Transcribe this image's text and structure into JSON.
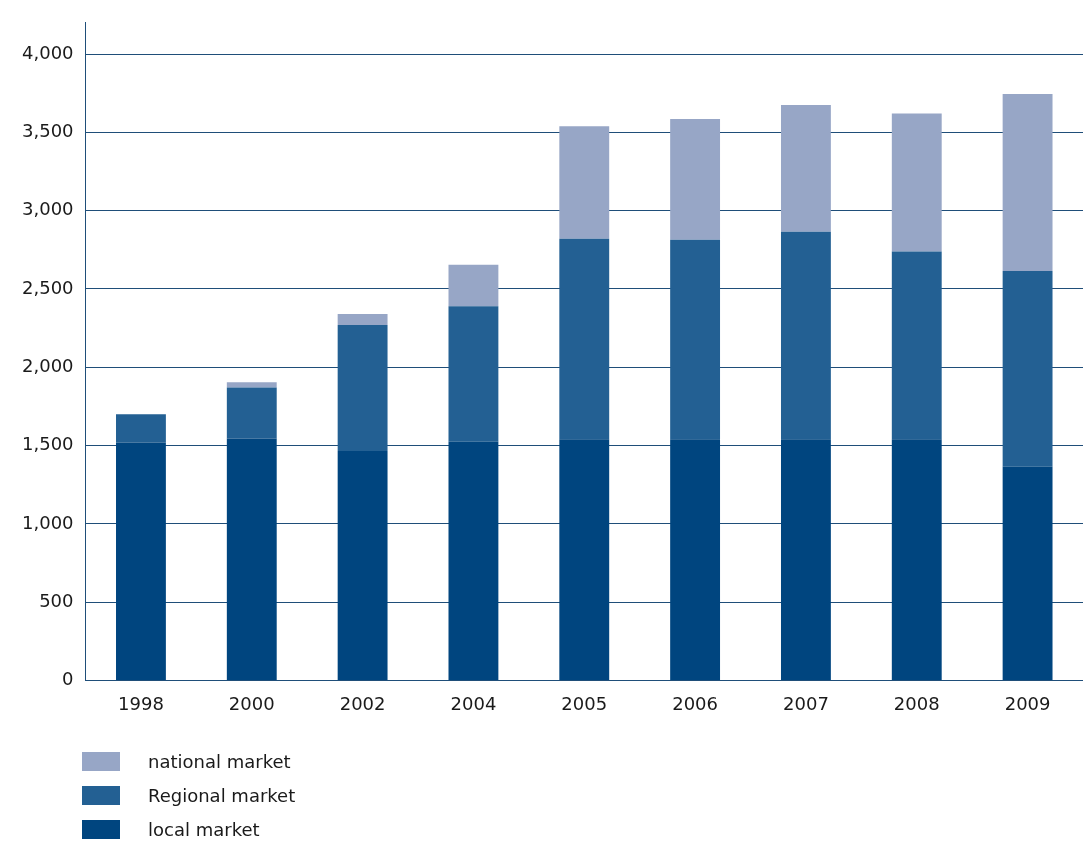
{
  "chart_data": {
    "type": "bar",
    "stacked": true,
    "categories": [
      "1998",
      "2000",
      "2002",
      "2004",
      "2005",
      "2006",
      "2007",
      "2008",
      "2009"
    ],
    "series": [
      {
        "name": "local market",
        "color": "#00457f",
        "values": [
          1520,
          1545,
          1465,
          1525,
          1540,
          1540,
          1540,
          1540,
          1365
        ]
      },
      {
        "name": "Regional market",
        "color": "#236093",
        "values": [
          180,
          325,
          805,
          865,
          1280,
          1275,
          1325,
          1200,
          1250
        ]
      },
      {
        "name": "national market",
        "color": "#97a6c6",
        "values": [
          null,
          35,
          70,
          265,
          720,
          770,
          810,
          880,
          1130
        ]
      }
    ],
    "ylim": [
      0,
      4200
    ],
    "yticks": [
      {
        "value": 0,
        "label": "0"
      },
      {
        "value": 500,
        "label": "500"
      },
      {
        "value": 1000,
        "label": "1,000"
      },
      {
        "value": 1500,
        "label": "1,500"
      },
      {
        "value": 2000,
        "label": "2,000"
      },
      {
        "value": 2500,
        "label": "2,500"
      },
      {
        "value": 3000,
        "label": "3,000"
      },
      {
        "value": 3500,
        "label": "3,500"
      },
      {
        "value": 4000,
        "label": "4,000"
      }
    ],
    "grid": "y",
    "legend": "bottom left"
  }
}
